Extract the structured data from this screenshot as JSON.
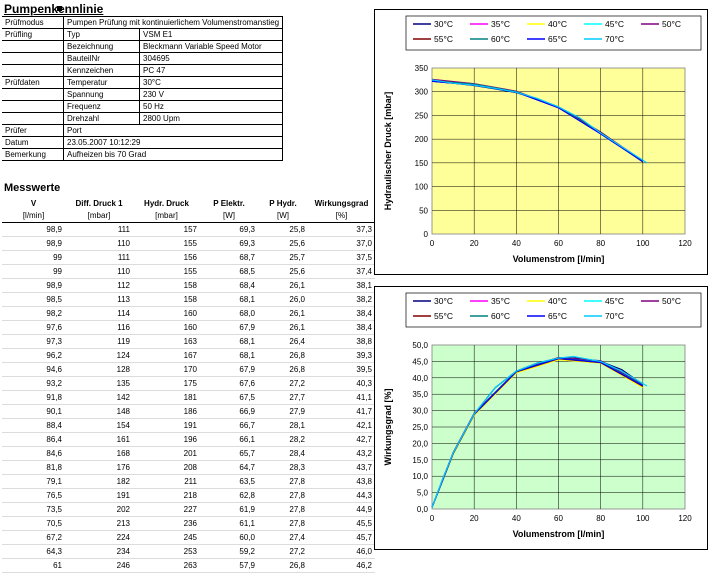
{
  "title": "Pumpenkennlinie",
  "info": [
    {
      "label": "Prüfmodus",
      "key": "",
      "value": "Pumpen Prüfung mit kontinuierlichem Volumenstromanstieg"
    },
    {
      "label": "Prüfling",
      "key": "Typ",
      "value": "VSM E1"
    },
    {
      "label": "",
      "key": "Bezeichnung",
      "value": "Bleckmann Variable Speed Motor"
    },
    {
      "label": "",
      "key": "BauteilNr",
      "value": "304695"
    },
    {
      "label": "",
      "key": "Kennzeichen",
      "value": "PC 47"
    },
    {
      "label": "Prüfdaten",
      "key": "Temperatur",
      "value": "30°C"
    },
    {
      "label": "",
      "key": "Spannung",
      "value": "230 V"
    },
    {
      "label": "",
      "key": "Frequenz",
      "value": "50 Hz"
    },
    {
      "label": "",
      "key": "Drehzahl",
      "value": "2800 Upm"
    },
    {
      "label": "Prüfer",
      "key": "",
      "value": "Port"
    },
    {
      "label": "Datum",
      "key": "",
      "value": "23.05.2007 10:12:29"
    },
    {
      "label": "Bemerkung",
      "key": "",
      "value": "Aufheizen bis 70 Grad"
    }
  ],
  "messwerte": {
    "title": "Messwerte",
    "headers": [
      "V",
      "Diff. Druck 1",
      "Hydr. Druck",
      "P Elektr.",
      "P Hydr.",
      "Wirkungsgrad"
    ],
    "units": [
      "[l/min]",
      "[mbar]",
      "[mbar]",
      "[W]",
      "[W]",
      "[%]"
    ],
    "rows": [
      [
        "98,9",
        "111",
        "157",
        "69,3",
        "25,8",
        "37,3"
      ],
      [
        "98,9",
        "110",
        "155",
        "69,3",
        "25,6",
        "37,0"
      ],
      [
        "99",
        "111",
        "156",
        "68,7",
        "25,7",
        "37,5"
      ],
      [
        "99",
        "110",
        "155",
        "68,5",
        "25,6",
        "37,4"
      ],
      [
        "98,9",
        "112",
        "158",
        "68,4",
        "26,1",
        "38,1"
      ],
      [
        "98,5",
        "113",
        "158",
        "68,1",
        "26,0",
        "38,2"
      ],
      [
        "98,2",
        "114",
        "160",
        "68,0",
        "26,1",
        "38,4"
      ],
      [
        "97,6",
        "116",
        "160",
        "67,9",
        "26,1",
        "38,4"
      ],
      [
        "97,3",
        "119",
        "163",
        "68,1",
        "26,4",
        "38,8"
      ],
      [
        "96,2",
        "124",
        "167",
        "68,1",
        "26,8",
        "39,3"
      ],
      [
        "94,6",
        "128",
        "170",
        "67,9",
        "26,8",
        "39,5"
      ],
      [
        "93,2",
        "135",
        "175",
        "67,6",
        "27,2",
        "40,3"
      ],
      [
        "91,8",
        "142",
        "181",
        "67,5",
        "27,7",
        "41,1"
      ],
      [
        "90,1",
        "148",
        "186",
        "66,9",
        "27,9",
        "41,7"
      ],
      [
        "88,4",
        "154",
        "191",
        "66,7",
        "28,1",
        "42,1"
      ],
      [
        "86,4",
        "161",
        "196",
        "66,1",
        "28,2",
        "42,7"
      ],
      [
        "84,6",
        "168",
        "201",
        "65,7",
        "28,4",
        "43,2"
      ],
      [
        "81,8",
        "176",
        "208",
        "64,7",
        "28,3",
        "43,7"
      ],
      [
        "79,1",
        "182",
        "211",
        "63,5",
        "27,8",
        "43,8"
      ],
      [
        "76,5",
        "191",
        "218",
        "62,8",
        "27,8",
        "44,3"
      ],
      [
        "73,5",
        "202",
        "227",
        "61,9",
        "27,8",
        "44,9"
      ],
      [
        "70,5",
        "213",
        "236",
        "61,1",
        "27,8",
        "45,5"
      ],
      [
        "67,2",
        "224",
        "245",
        "60,0",
        "27,4",
        "45,7"
      ],
      [
        "64,3",
        "234",
        "253",
        "59,2",
        "27,2",
        "46,0"
      ],
      [
        "61",
        "246",
        "263",
        "57,9",
        "26,8",
        "46,2"
      ]
    ]
  },
  "colors": {
    "chart1_plot_bg": "#ffff99",
    "chart2_plot_bg": "#ccffcc",
    "series": [
      "#000080",
      "#ff00ff",
      "#ffff00",
      "#00ffff",
      "#800080",
      "#800000",
      "#008080",
      "#0000ff",
      "#00ccff"
    ]
  },
  "chart_data": [
    {
      "type": "line",
      "title": "",
      "xlabel": "Volumenstrom [l/min]",
      "ylabel": "Hydraulischer Druck [mbar]",
      "xlim": [
        0,
        120
      ],
      "ylim": [
        0,
        350
      ],
      "xticks": [
        "0",
        "20",
        "40",
        "60",
        "80",
        "100",
        "120"
      ],
      "yticks": [
        "0",
        "50",
        "100",
        "150",
        "200",
        "250",
        "300",
        "350"
      ],
      "grid": true,
      "legend": "top",
      "series": [
        {
          "name": "30°C",
          "x": [
            0,
            10,
            20,
            30,
            40,
            50,
            60,
            70,
            80,
            90,
            100
          ],
          "y": [
            322,
            318,
            313,
            306,
            298,
            285,
            268,
            243,
            211,
            182,
            152
          ]
        },
        {
          "name": "35°C",
          "x": [
            0,
            20,
            40,
            60,
            80,
            100
          ],
          "y": [
            325,
            316,
            300,
            266,
            214,
            155
          ]
        },
        {
          "name": "40°C",
          "x": [
            0,
            20,
            40,
            60,
            80,
            100
          ],
          "y": [
            324,
            316,
            299,
            268,
            213,
            154
          ]
        },
        {
          "name": "45°C",
          "x": [
            0,
            20,
            40,
            60,
            80,
            100
          ],
          "y": [
            323,
            315,
            299,
            267,
            212,
            153
          ]
        },
        {
          "name": "50°C",
          "x": [
            0,
            20,
            40,
            60,
            80,
            100
          ],
          "y": [
            326,
            317,
            301,
            268,
            215,
            153
          ]
        },
        {
          "name": "55°C",
          "x": [
            0,
            20,
            40,
            60,
            80,
            100
          ],
          "y": [
            324,
            315,
            300,
            267,
            214,
            154
          ]
        },
        {
          "name": "60°C",
          "x": [
            0,
            20,
            40,
            60,
            80,
            100
          ],
          "y": [
            323,
            316,
            300,
            268,
            212,
            155
          ]
        },
        {
          "name": "65°C",
          "x": [
            0,
            20,
            40,
            60,
            80,
            100
          ],
          "y": [
            322,
            314,
            299,
            266,
            211,
            153
          ]
        },
        {
          "name": "70°C",
          "x": [
            0,
            10,
            20,
            30,
            40,
            50,
            60,
            70,
            80,
            90,
            102
          ],
          "y": [
            325,
            318,
            314,
            307,
            299,
            286,
            268,
            245,
            213,
            184,
            150
          ]
        }
      ]
    },
    {
      "type": "line",
      "title": "",
      "xlabel": "Volumenstrom [l/min]",
      "ylabel": "Wirkungsgrad [%]",
      "xlim": [
        0,
        120
      ],
      "ylim": [
        0,
        50
      ],
      "xticks": [
        "0",
        "20",
        "40",
        "60",
        "80",
        "100",
        "120"
      ],
      "yticks": [
        "0,0",
        "5,0",
        "10,0",
        "15,0",
        "20,0",
        "25,0",
        "30,0",
        "35,0",
        "40,0",
        "45,0",
        "50,0"
      ],
      "grid": true,
      "legend": "top",
      "series": [
        {
          "name": "30°C",
          "x": [
            0,
            5,
            10,
            20,
            30,
            40,
            50,
            60,
            70,
            80,
            90,
            100
          ],
          "y": [
            0.5,
            9,
            17,
            29,
            37,
            42,
            44.5,
            46,
            46,
            45,
            42.5,
            38
          ]
        },
        {
          "name": "35°C",
          "x": [
            0,
            10,
            20,
            40,
            60,
            80,
            100
          ],
          "y": [
            0.5,
            17,
            29,
            42,
            46,
            44.8,
            37.5
          ]
        },
        {
          "name": "40°C",
          "x": [
            0,
            10,
            20,
            40,
            60,
            80,
            100
          ],
          "y": [
            0.5,
            16.5,
            28.5,
            41.5,
            45.5,
            44.5,
            37
          ]
        },
        {
          "name": "45°C",
          "x": [
            0,
            10,
            20,
            40,
            60,
            80,
            100
          ],
          "y": [
            0.5,
            17,
            29,
            42,
            46,
            45,
            37.5
          ]
        },
        {
          "name": "50°C",
          "x": [
            0,
            10,
            20,
            40,
            60,
            80,
            100
          ],
          "y": [
            0.5,
            17.2,
            29.2,
            42,
            46.2,
            45.2,
            38
          ]
        },
        {
          "name": "55°C",
          "x": [
            0,
            10,
            20,
            40,
            60,
            80,
            100
          ],
          "y": [
            0.5,
            16.8,
            28.8,
            41.8,
            45.8,
            44.6,
            37.4
          ]
        },
        {
          "name": "60°C",
          "x": [
            0,
            10,
            20,
            40,
            60,
            80,
            100
          ],
          "y": [
            0.5,
            17,
            29,
            42,
            46,
            44.8,
            37.8
          ]
        },
        {
          "name": "65°C",
          "x": [
            0,
            10,
            20,
            40,
            60,
            80,
            100
          ],
          "y": [
            0.5,
            16.9,
            28.9,
            41.9,
            45.9,
            44.7,
            37.6
          ]
        },
        {
          "name": "70°C",
          "x": [
            0,
            5,
            10,
            20,
            30,
            40,
            50,
            60,
            67,
            80,
            90,
            102
          ],
          "y": [
            0.5,
            9,
            17,
            29,
            37,
            42,
            44.5,
            46,
            46.5,
            45,
            42,
            37.5
          ]
        }
      ]
    }
  ]
}
